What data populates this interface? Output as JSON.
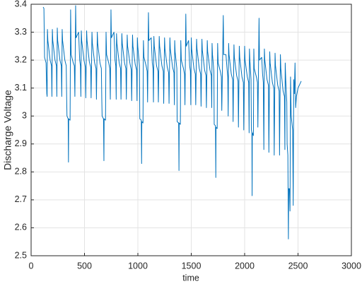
{
  "chart_data": {
    "type": "line",
    "xlabel": "time",
    "ylabel": "Discharge Voltage",
    "color": "#0072bd",
    "grid": true,
    "xlim": [
      0,
      3000
    ],
    "xticks": [
      0,
      500,
      1000,
      1500,
      2000,
      2500,
      3000
    ],
    "ylim": [
      2.5,
      3.4
    ],
    "yticks": [
      2.5,
      2.6,
      2.7,
      2.8,
      2.9,
      3,
      3.1,
      3.2,
      3.3,
      3.4
    ],
    "x": [
      113,
      120,
      126,
      140,
      147,
      150,
      153,
      157,
      178,
      191,
      195,
      199,
      203,
      224,
      237,
      241,
      245,
      249,
      270,
      283,
      287,
      291,
      295,
      316,
      329,
      333,
      336,
      347,
      350,
      352,
      365,
      370,
      375,
      395,
      405,
      410,
      417,
      421,
      445,
      455,
      462,
      466,
      470,
      474,
      495,
      508,
      512,
      520,
      524,
      545,
      558,
      562,
      570,
      574,
      595,
      608,
      612,
      620,
      624,
      645,
      658,
      662,
      665,
      678,
      682,
      684,
      697,
      702,
      707,
      727,
      737,
      742,
      748,
      752,
      776,
      786,
      793,
      797,
      800,
      804,
      825,
      838,
      842,
      850,
      854,
      875,
      888,
      892,
      900,
      904,
      925,
      938,
      942,
      950,
      954,
      975,
      988,
      992,
      995,
      999,
      1015,
      1018,
      1032,
      1035,
      1037,
      1048,
      1052,
      1057,
      1077,
      1087,
      1091,
      1099,
      1103,
      1125,
      1135,
      1142,
      1146,
      1150,
      1154,
      1175,
      1188,
      1192,
      1200,
      1204,
      1225,
      1238,
      1242,
      1250,
      1254,
      1275,
      1288,
      1292,
      1300,
      1304,
      1325,
      1338,
      1342,
      1345,
      1349,
      1365,
      1368,
      1382,
      1385,
      1387,
      1398,
      1402,
      1407,
      1427,
      1437,
      1441,
      1449,
      1453,
      1475,
      1485,
      1492,
      1496,
      1500,
      1504,
      1525,
      1538,
      1542,
      1550,
      1554,
      1575,
      1588,
      1592,
      1600,
      1604,
      1625,
      1638,
      1642,
      1650,
      1654,
      1675,
      1688,
      1692,
      1695,
      1699,
      1712,
      1715,
      1727,
      1730,
      1732,
      1743,
      1747,
      1752,
      1772,
      1782,
      1786,
      1800,
      1804,
      1825,
      1835,
      1842,
      1846,
      1850,
      1854,
      1875,
      1888,
      1892,
      1900,
      1904,
      1925,
      1938,
      1942,
      1950,
      1954,
      1975,
      1988,
      1992,
      2000,
      2004,
      2025,
      2038,
      2042,
      2045,
      2049,
      2060,
      2063,
      2068,
      2070,
      2072,
      2082,
      2086,
      2090,
      2110,
      2120,
      2124,
      2135,
      2139,
      2160,
      2168,
      2175,
      2180,
      2185,
      2189,
      2210,
      2223,
      2227,
      2235,
      2239,
      2260,
      2273,
      2277,
      2285,
      2289,
      2310,
      2323,
      2327,
      2335,
      2339,
      2360,
      2373,
      2377,
      2380,
      2385,
      2395,
      2398,
      2405,
      2410,
      2413,
      2420,
      2425,
      2430,
      2436,
      2450,
      2455,
      2460,
      2466,
      2472,
      2478,
      2485,
      2500,
      2530
    ],
    "values": [
      3.39,
      3.385,
      3.21,
      3.19,
      3.08,
      3.07,
      3.31,
      3.27,
      3.2,
      3.18,
      3.07,
      3.31,
      3.27,
      3.2,
      3.18,
      3.07,
      3.315,
      3.27,
      3.2,
      3.18,
      3.07,
      3.31,
      3.27,
      3.2,
      3.18,
      3.065,
      3.0,
      2.99,
      2.835,
      2.99,
      2.985,
      3.38,
      3.22,
      3.19,
      3.18,
      3.07,
      3.395,
      3.28,
      3.3,
      3.2,
      3.18,
      3.07,
      3.305,
      3.27,
      3.2,
      3.175,
      3.065,
      3.305,
      3.27,
      3.195,
      3.175,
      3.065,
      3.3,
      3.26,
      3.19,
      3.17,
      3.06,
      3.3,
      3.26,
      3.19,
      3.17,
      3.06,
      3.0,
      2.99,
      2.84,
      2.99,
      2.985,
      3.3,
      3.22,
      3.19,
      3.17,
      3.06,
      3.38,
      3.28,
      3.3,
      3.2,
      3.18,
      3.06,
      3.295,
      3.26,
      3.19,
      3.17,
      3.06,
      3.295,
      3.26,
      3.19,
      3.17,
      3.06,
      3.29,
      3.25,
      3.19,
      3.165,
      3.055,
      3.29,
      3.25,
      3.185,
      3.165,
      3.055,
      3.28,
      3.25,
      3.18,
      2.99,
      2.985,
      2.83,
      2.98,
      2.975,
      3.27,
      3.21,
      3.18,
      3.16,
      3.05,
      3.37,
      3.27,
      3.28,
      3.19,
      3.17,
      3.05,
      3.285,
      3.25,
      3.18,
      3.16,
      3.05,
      3.285,
      3.25,
      3.18,
      3.16,
      3.045,
      3.28,
      3.24,
      3.175,
      3.155,
      3.045,
      3.28,
      3.24,
      3.175,
      3.155,
      3.04,
      3.27,
      3.23,
      3.17,
      2.98,
      2.975,
      2.805,
      2.975,
      2.97,
      3.27,
      3.2,
      3.17,
      3.15,
      3.04,
      3.365,
      3.25,
      3.27,
      3.18,
      3.16,
      3.04,
      3.28,
      3.24,
      3.17,
      3.15,
      3.04,
      3.275,
      3.24,
      3.17,
      3.15,
      3.035,
      3.275,
      3.235,
      3.165,
      3.145,
      3.03,
      3.27,
      3.23,
      3.165,
      3.145,
      3.03,
      3.26,
      3.22,
      3.16,
      2.97,
      2.965,
      2.78,
      2.96,
      2.955,
      3.26,
      3.19,
      3.16,
      3.14,
      3.02,
      3.36,
      3.22,
      3.22,
      3.17,
      3.14,
      3.0,
      3.26,
      3.22,
      3.15,
      3.13,
      2.98,
      3.255,
      3.21,
      3.145,
      3.125,
      2.96,
      3.25,
      3.21,
      3.14,
      3.12,
      2.95,
      3.25,
      3.2,
      3.14,
      3.12,
      2.94,
      3.24,
      3.2,
      3.13,
      2.95,
      2.94,
      2.715,
      2.94,
      2.93,
      3.24,
      3.17,
      3.14,
      3.12,
      2.96,
      3.35,
      3.2,
      3.21,
      3.15,
      3.12,
      2.88,
      3.24,
      3.2,
      3.13,
      3.11,
      2.87,
      3.23,
      3.19,
      3.12,
      3.1,
      2.86,
      3.225,
      3.18,
      3.11,
      3.09,
      2.86,
      3.22,
      3.17,
      3.09,
      3.07,
      2.88,
      3.19,
      3.13,
      3.05,
      2.9,
      2.86,
      2.56,
      2.74,
      2.74,
      2.66,
      3.14,
      3.0,
      2.95,
      2.68,
      3.13,
      3.08,
      3.19,
      3.03,
      3.07,
      3.1,
      3.125
    ]
  }
}
